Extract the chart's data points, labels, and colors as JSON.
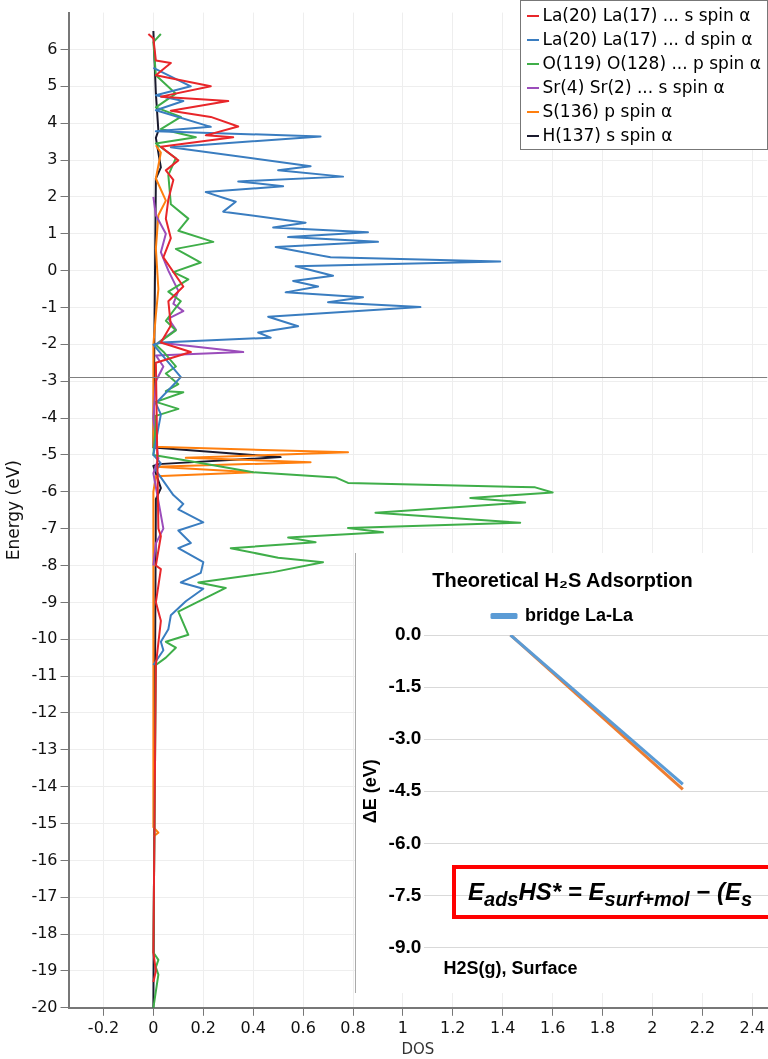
{
  "chart_data": [
    {
      "type": "line",
      "xlabel": "DOS",
      "ylabel": "Energy (eV)",
      "xlim": [
        -0.34,
        2.46
      ],
      "ylim": [
        -20,
        7
      ],
      "xticks": [
        -0.2,
        0,
        0.2,
        0.4,
        0.6,
        0.8,
        1,
        1.2,
        1.4,
        1.6,
        1.8,
        2,
        2.2,
        2.4
      ],
      "yticks": [
        -20,
        -19,
        -18,
        -17,
        -16,
        -15,
        -14,
        -13,
        -12,
        -11,
        -10,
        -9,
        -8,
        -7,
        -6,
        -5,
        -4,
        -3,
        -2,
        -1,
        0,
        1,
        2,
        3,
        4,
        5,
        6
      ],
      "grid": true,
      "legend": "top right",
      "ref_lines": [
        {
          "axis": "y",
          "value": -2.9,
          "color": "#808080"
        }
      ],
      "series": [
        {
          "name": "La(20) La(17) ... s spin α",
          "color": "#e8262a",
          "x": [
            -0.02,
            0,
            0.01,
            0.07,
            0.01,
            0.23,
            0.03,
            0.3,
            0.07,
            0.23,
            0.34,
            0.21,
            0.32,
            0.03,
            0.1,
            0.05,
            0.08,
            0.06,
            0.05,
            0.07,
            0.04,
            0.12,
            0.06,
            0.07,
            0.03,
            0.15,
            0.01,
            0.02,
            0.03,
            0.01,
            0.03,
            0.01,
            0.03,
            0.01,
            0,
            0.01,
            0
          ],
          "values": [
            6.42,
            6.3,
            5.7,
            5.63,
            5.3,
            5.0,
            4.72,
            4.6,
            4.34,
            4.17,
            3.91,
            3.67,
            3.62,
            3.36,
            2.99,
            2.72,
            2.46,
            1.93,
            1.41,
            0.88,
            0.36,
            -0.43,
            -0.83,
            -1.49,
            -1.95,
            -2.21,
            -2.5,
            -7,
            -7.2,
            -8,
            -8.1,
            -9,
            -9.5,
            -10.7,
            -18.5,
            -19,
            -19.3
          ]
        },
        {
          "name": "La(20) La(17) ... d spin α",
          "color": "#3a7dc0",
          "x": [
            0,
            0.15,
            0.01,
            0.12,
            0.01,
            0.23,
            0.01,
            0.67,
            0.07,
            0.63,
            0.5,
            0.76,
            0.34,
            0.52,
            0.21,
            0.33,
            0.28,
            0.61,
            0.48,
            0.86,
            0.54,
            0.9,
            0.49,
            0.71,
            1.39,
            0.57,
            0.72,
            0.56,
            0.66,
            0.53,
            0.84,
            0.7,
            1.07,
            0.46,
            0.58,
            0.42,
            0.47,
            0.03,
            0,
            0.11,
            0.01,
            0.03,
            0,
            0.03,
            0.01,
            0.08,
            0.12,
            0.1,
            0.2,
            0.1,
            0.15,
            0.1,
            0.2,
            0.19,
            0.11,
            0.2,
            0.13,
            0.07,
            0.06,
            0.03,
            0.04,
            0
          ],
          "values": [
            5.5,
            5.0,
            4.76,
            4.6,
            4.35,
            3.9,
            3.78,
            3.64,
            3.35,
            2.83,
            2.72,
            2.55,
            2.42,
            2.29,
            2.13,
            1.87,
            1.6,
            1.3,
            1.17,
            1.04,
            0.91,
            0.78,
            0.64,
            0.36,
            0.25,
            0.12,
            -0.14,
            -0.28,
            -0.43,
            -0.59,
            -0.72,
            -0.86,
            -0.99,
            -1.25,
            -1.51,
            -1.68,
            -1.82,
            -1.95,
            -2.01,
            -2.89,
            -3.6,
            -3.9,
            -5.0,
            -5.23,
            -5.42,
            -6.09,
            -6.33,
            -6.48,
            -6.83,
            -7.05,
            -7.39,
            -7.53,
            -7.91,
            -8.2,
            -8.46,
            -8.63,
            -8.97,
            -9.35,
            -9.73,
            -10.07,
            -10.3,
            -10.7
          ]
        },
        {
          "name": "O(119) O(128) ... p spin α",
          "color": "#3fae49",
          "x": [
            0.03,
            0,
            0.01,
            0.09,
            0.01,
            0.11,
            0.03,
            0.17,
            0.01,
            0.09,
            0.06,
            0.07,
            0.14,
            0.1,
            0.24,
            0.09,
            0.19,
            0.08,
            0.14,
            0.06,
            0.11,
            0.05,
            0.09,
            0.01,
            0.04,
            0.09,
            0.05,
            0.1,
            0.05,
            0.12,
            0.01,
            0.1,
            0.01,
            0.01,
            0,
            0.12,
            0.4,
            0.73,
            0.78,
            1.53,
            1.6,
            1.27,
            1.49,
            0.89,
            1.47,
            0.78,
            0.92,
            0.54,
            0.65,
            0.31,
            0.5,
            0.68,
            0.48,
            0.18,
            0.29,
            0.1,
            0.14,
            0.05,
            0.09,
            0.05,
            0.01,
            0,
            0.02,
            0.01,
            0.02,
            0
          ],
          "values": [
            6.42,
            6.2,
            5.3,
            4.8,
            4.43,
            4.17,
            3.84,
            3.62,
            3.45,
            3.05,
            2.59,
            1.8,
            1.41,
            1.08,
            0.78,
            0.59,
            0.22,
            -0.04,
            -0.24,
            -0.57,
            -0.83,
            -1.36,
            -1.62,
            -2.01,
            -2.2,
            -2.6,
            -2.79,
            -3.08,
            -3.27,
            -3.3,
            -3.56,
            -3.75,
            -3.94,
            -4.13,
            -5.0,
            -5.14,
            -5.47,
            -5.61,
            -5.76,
            -5.88,
            -6.02,
            -6.17,
            -6.29,
            -6.57,
            -6.84,
            -6.98,
            -7.1,
            -7.24,
            -7.37,
            -7.53,
            -7.79,
            -7.91,
            -8.18,
            -8.46,
            -8.61,
            -9.25,
            -9.88,
            -10.07,
            -10.23,
            -10.5,
            -10.7,
            -18.5,
            -18.7,
            -18.9,
            -19.1,
            -20
          ]
        },
        {
          "name": "Sr(4) Sr(2) ... s spin α",
          "color": "#9b4dbb",
          "x": [
            0,
            0.01,
            0.05,
            0.03,
            0.06,
            0.1,
            0.08,
            0.12,
            0.06,
            0.09,
            0.02,
            0.36,
            0.01,
            0.04,
            0.01,
            0,
            0.02,
            0,
            0.04,
            0.01,
            0
          ],
          "values": [
            2.0,
            1.5,
            1.0,
            0.5,
            0,
            -0.55,
            -0.9,
            -1.1,
            -1.3,
            -1.6,
            -1.95,
            -2.21,
            -2.3,
            -2.6,
            -3.0,
            -4.0,
            -5.1,
            -5.5,
            -7.0,
            -7.4,
            -8.0
          ]
        },
        {
          "name": "S(136)  p spin α",
          "color": "#ff7f0e",
          "x": [
            0.01,
            0.03,
            0.01,
            0.05,
            0.02,
            0.01,
            0.02,
            0.01,
            0,
            0,
            0.78,
            0.13,
            0.63,
            0.01,
            0.4,
            0.01,
            0,
            0,
            0.02,
            0
          ],
          "values": [
            3.4,
            3.2,
            2.5,
            1.9,
            1.5,
            0.6,
            -0.5,
            -1.2,
            -2.0,
            -4.78,
            -4.93,
            -5.08,
            -5.2,
            -5.32,
            -5.47,
            -5.58,
            -6.0,
            -15.1,
            -15.25,
            -15.35
          ]
        },
        {
          "name": "H(137)  s spin α",
          "color": "#1a1a2e",
          "x": [
            0,
            0.01,
            0.02,
            0.01,
            0.03,
            0.01,
            0,
            0.51,
            0.02,
            0,
            0.03,
            0.01,
            0
          ],
          "values": [
            6.5,
            4.8,
            3.8,
            3.6,
            2.8,
            2.5,
            -4.8,
            -5.06,
            -5.25,
            -5.3,
            -5.9,
            -6.2,
            -20
          ]
        }
      ]
    },
    {
      "type": "line",
      "title": "Theoretical H₂S Adsorption",
      "ylabel": "ΔE (eV)",
      "categories": [
        "H2S(g), Surface",
        null
      ],
      "ylim": [
        -9,
        0
      ],
      "yticks": [
        {
          "value": -9,
          "label": "-9.0"
        },
        {
          "value": -7.5,
          "label": "-7.5"
        },
        {
          "value": -6,
          "label": "-6.0"
        },
        {
          "value": -4.5,
          "label": "-4.5"
        },
        {
          "value": -3,
          "label": "-3.0"
        },
        {
          "value": -1.5,
          "label": "-1.5"
        },
        {
          "value": 0,
          "label": "0.0"
        }
      ],
      "grid": "y",
      "legend": "top",
      "marker": "none",
      "annotations": [
        "E$_{ads}$HS* = E$_{surf+mol}$ − (E$_{s}$"
      ],
      "series": [
        {
          "name": "bridge La-La",
          "color": "#5b9bd5",
          "values": [
            0,
            -4.3
          ]
        },
        {
          "color": "#ed7d31",
          "values": [
            0,
            -4.45
          ]
        }
      ]
    }
  ]
}
